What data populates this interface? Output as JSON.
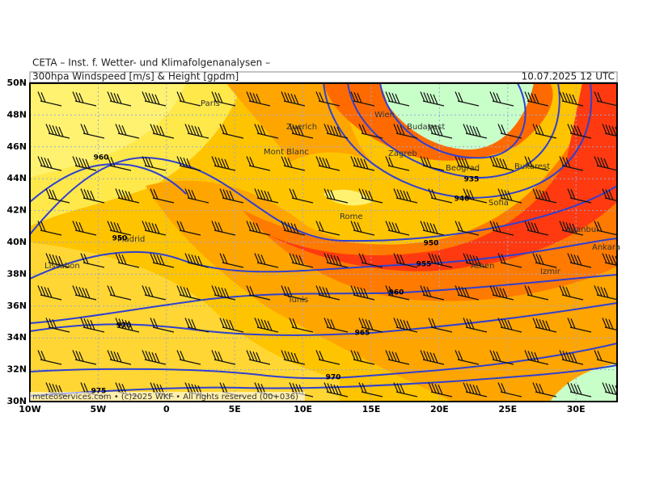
{
  "header": {
    "institute": "CETA – Inst. f. Wetter- und Klimafolgenanalysen –",
    "product": "300hpa Windspeed [m/s] & Height [gpdm]",
    "valid": "10.07.2025 12 UTC"
  },
  "footer": "meteoservices.com • (c)2025 WKF • All rights reserved (00+036)",
  "lon_labels": [
    "10W",
    "5W",
    "0",
    "5E",
    "10E",
    "15E",
    "20E",
    "25E",
    "30E"
  ],
  "lat_labels": [
    "50N",
    "48N",
    "46N",
    "44N",
    "42N",
    "40N",
    "38N",
    "36N",
    "34N",
    "32N",
    "30N"
  ],
  "cities": [
    "Paris",
    "Wien",
    "Zuerich",
    "Budapest",
    "Mont Blanc",
    "Zagreb",
    "Beograd",
    "Bukarest",
    "Sofia",
    "Rome",
    "Istanbul",
    "Madrid",
    "Ankara",
    "Lissabon",
    "Athen",
    "Izmir",
    "Tunis"
  ],
  "contour_labels": [
    960,
    935,
    940,
    950,
    950,
    955,
    960,
    970,
    965,
    970,
    975
  ]
}
